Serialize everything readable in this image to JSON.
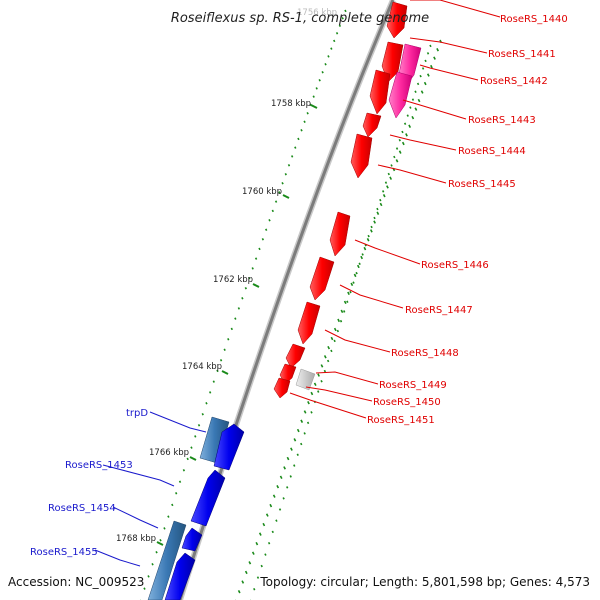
{
  "title": "Roseiflexus sp. RS-1, complete genome",
  "accession_text": "Accession: NC_009523",
  "summary_text": "Topology: circular; Length: 5,801,598 bp; Genes: 4,573",
  "top_tick_label": "1756 kbp",
  "tick_labels": [
    "1758 kbp",
    "1760 kbp",
    "1762 kbp",
    "1764 kbp",
    "1766 kbp",
    "1768 kbp"
  ],
  "right_gene_labels": [
    "RoseRS_1440",
    "RoseRS_1441",
    "RoseRS_1442",
    "RoseRS_1443",
    "RoseRS_1444",
    "RoseRS_1445",
    "RoseRS_1446",
    "RoseRS_1447",
    "RoseRS_1448",
    "RoseRS_1449",
    "RoseRS_1450",
    "RoseRS_1451"
  ],
  "left_gene_labels": [
    "trpD",
    "RoseRS_1453",
    "RoseRS_1454",
    "RoseRS_1455"
  ],
  "colors": {
    "forward_gene": "#ff0000",
    "forward_gene_alt": "#ff2aa0",
    "reverse_gene": "#0000ee",
    "reverse_gene_alt": "#3a78b4",
    "backbone": "#888888",
    "tick_marks": "#1a8a1a",
    "right_label_color": "#e00000",
    "left_label_color": "#1a1acc",
    "grey_feature": "#c8c8c8"
  }
}
